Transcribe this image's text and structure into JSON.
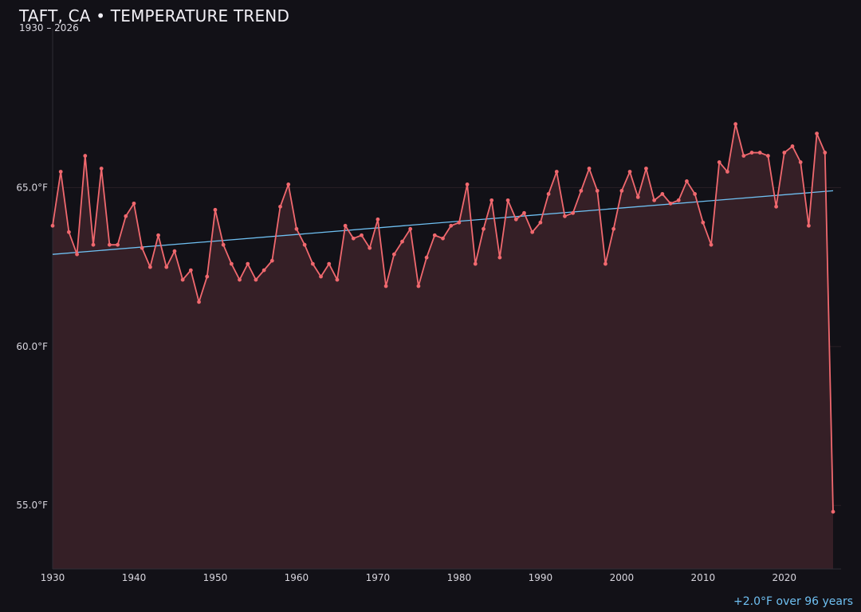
{
  "header": {
    "title": "TAFT, CA • TEMPERATURE TREND",
    "subtitle": "1930 – 2026"
  },
  "annotation": {
    "trend_text": "+2.0°F over 96 years"
  },
  "colors": {
    "background": "#121117",
    "series_line": "#f0686e",
    "series_fill": "#351f26",
    "trend_line": "#6fc0f2",
    "grid": "#2a2026",
    "axis": "#2e2d35"
  },
  "chart_data": {
    "type": "line",
    "title": "TAFT, CA • TEMPERATURE TREND",
    "subtitle": "1930 – 2026",
    "xlabel": "",
    "ylabel": "",
    "xlim": [
      1930,
      2026
    ],
    "ylim": [
      53,
      70
    ],
    "x_ticks": [
      1930,
      1940,
      1950,
      1960,
      1970,
      1980,
      1990,
      2000,
      2010,
      2020
    ],
    "y_ticks": [
      55,
      60,
      65
    ],
    "y_tick_suffix": "°F",
    "grid": true,
    "area_fill": true,
    "series": [
      {
        "x": [
          1930,
          1931,
          1932,
          1933,
          1934,
          1935,
          1936,
          1937,
          1938,
          1939,
          1940,
          1941,
          1942,
          1943,
          1944,
          1945,
          1946,
          1947,
          1948,
          1949,
          1950,
          1951,
          1952,
          1953,
          1954,
          1955,
          1956,
          1957,
          1958,
          1959,
          1960,
          1961,
          1962,
          1963,
          1964,
          1965,
          1966,
          1967,
          1968,
          1969,
          1970,
          1971,
          1972,
          1973,
          1974,
          1975,
          1976,
          1977,
          1978,
          1979,
          1980,
          1981,
          1982,
          1983,
          1984,
          1985,
          1986,
          1987,
          1988,
          1989,
          1990,
          1991,
          1992,
          1993,
          1994,
          1995,
          1996,
          1997,
          1998,
          1999,
          2000,
          2001,
          2002,
          2003,
          2004,
          2005,
          2006,
          2007,
          2008,
          2009,
          2010,
          2011,
          2012,
          2013,
          2014,
          2015,
          2016,
          2017,
          2018,
          2019,
          2020,
          2021,
          2022,
          2023,
          2024,
          2025,
          2026
        ],
        "values": [
          63.8,
          65.5,
          63.6,
          62.9,
          66.0,
          63.2,
          65.6,
          63.2,
          63.2,
          64.1,
          64.5,
          63.1,
          62.5,
          63.5,
          62.5,
          63.0,
          62.1,
          62.4,
          61.4,
          62.2,
          64.3,
          63.2,
          62.6,
          62.1,
          62.6,
          62.1,
          62.4,
          62.7,
          64.4,
          65.1,
          63.7,
          63.2,
          62.6,
          62.2,
          62.6,
          62.1,
          63.8,
          63.4,
          63.5,
          63.1,
          64.0,
          61.9,
          62.9,
          63.3,
          63.7,
          61.9,
          62.8,
          63.5,
          63.4,
          63.8,
          63.9,
          65.1,
          62.6,
          63.7,
          64.6,
          62.8,
          64.6,
          64.0,
          64.2,
          63.6,
          63.9,
          64.8,
          65.5,
          64.1,
          64.2,
          64.9,
          65.6,
          64.9,
          62.6,
          63.7,
          64.9,
          65.5,
          64.7,
          65.6,
          64.6,
          64.8,
          64.5,
          64.6,
          65.2,
          64.8,
          63.9,
          63.2,
          65.8,
          65.5,
          67.0,
          66.0,
          66.1,
          66.1,
          66.0,
          64.4,
          66.1,
          66.3,
          65.8,
          63.8,
          66.7,
          66.1,
          54.8
        ]
      }
    ],
    "trend": {
      "x": [
        1930,
        2026
      ],
      "values": [
        62.9,
        64.9
      ]
    }
  }
}
